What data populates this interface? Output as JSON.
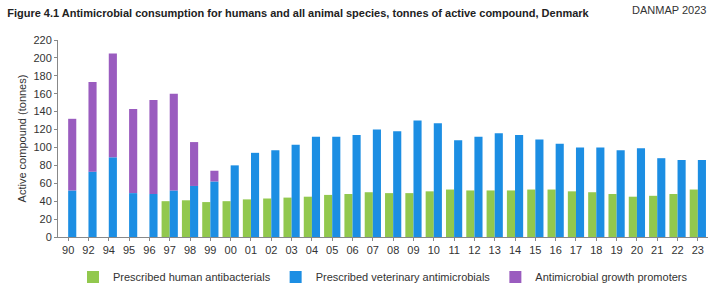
{
  "chart_data": {
    "type": "bar",
    "title": "Figure 4.1 Antimicrobial consumption for humans and all animal species, tonnes of active compound, Denmark",
    "annotations": [
      {
        "text": "DANMAP 2023"
      }
    ],
    "y_label": "Active compound (tonnes)",
    "categories": [
      "90",
      "92",
      "94",
      "95",
      "96",
      "97",
      "98",
      "99",
      "00",
      "01",
      "02",
      "03",
      "04",
      "05",
      "06",
      "07",
      "08",
      "09",
      "10",
      "11",
      "12",
      "13",
      "14",
      "15",
      "16",
      "17",
      "18",
      "19",
      "20",
      "21",
      "22",
      "23"
    ],
    "series": [
      {
        "name": "Prescribed human antibacterials",
        "color": "#92c84e",
        "values": [
          null,
          null,
          null,
          null,
          null,
          40,
          41,
          39,
          40,
          42,
          43,
          44,
          45,
          47,
          48,
          50,
          49,
          49,
          51,
          53,
          52,
          52,
          52,
          53,
          53,
          51,
          50,
          48,
          45,
          46,
          48,
          53
        ]
      },
      {
        "name": "Prescribed veterinary antimicrobials",
        "color": "#1c8ee3",
        "values": [
          52,
          73,
          89,
          49,
          48,
          52,
          57,
          62,
          80,
          94,
          97,
          103,
          112,
          112,
          114,
          120,
          118,
          130,
          127,
          108,
          112,
          116,
          114,
          109,
          104,
          100,
          100,
          97,
          99,
          88,
          86,
          86
        ]
      },
      {
        "name": "Antimicrobial growth promoters",
        "color": "#9a5cbf",
        "values": [
          80,
          100,
          116,
          94,
          105,
          108,
          49,
          12,
          null,
          null,
          null,
          null,
          null,
          null,
          null,
          null,
          null,
          null,
          null,
          null,
          null,
          null,
          null,
          null,
          null,
          null,
          null,
          null,
          null,
          null,
          null,
          null
        ]
      }
    ],
    "stacked": true,
    "ylim": [
      0,
      220
    ],
    "yticks": [
      0,
      20,
      40,
      60,
      80,
      100,
      120,
      140,
      160,
      180,
      200,
      220
    ],
    "grid": false,
    "legend": "bottom"
  }
}
